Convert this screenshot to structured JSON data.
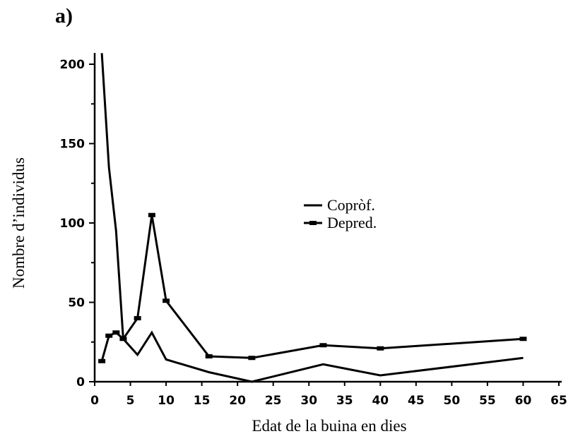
{
  "panel_label": "a)",
  "chart_data": {
    "type": "line",
    "title": "",
    "xlabel": "Edat de la buina en dies",
    "ylabel": "Nombre d’individus",
    "xlim": [
      0,
      65
    ],
    "ylim": [
      0,
      210
    ],
    "x_ticks": [
      0,
      5,
      10,
      15,
      20,
      25,
      30,
      35,
      40,
      45,
      50,
      55,
      60,
      65
    ],
    "y_ticks": [
      0,
      50,
      100,
      150,
      200
    ],
    "grid": false,
    "legend_position": "center-right",
    "series": [
      {
        "name": "Copròf.",
        "color": "#000000",
        "marker": "none",
        "x": [
          1,
          2,
          3,
          4,
          6,
          8,
          10,
          16,
          22,
          32,
          40,
          60
        ],
        "y": [
          207,
          135,
          95,
          27,
          17,
          31,
          14,
          6,
          0,
          11,
          4,
          15
        ]
      },
      {
        "name": "Depred.",
        "color": "#000000",
        "marker": "dash",
        "x": [
          1,
          2,
          3,
          4,
          6,
          8,
          10,
          16,
          22,
          32,
          40,
          60
        ],
        "y": [
          13,
          29,
          31,
          27,
          40,
          105,
          51,
          16,
          15,
          23,
          21,
          27
        ]
      }
    ]
  }
}
